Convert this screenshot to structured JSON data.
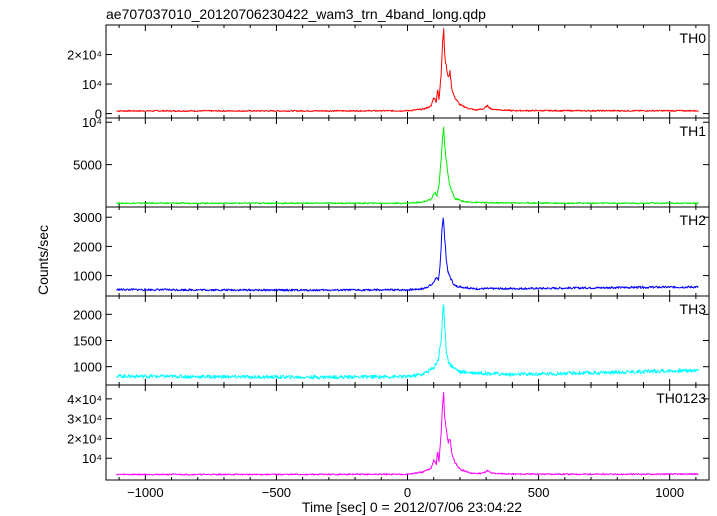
{
  "chart_data": {
    "type": "line",
    "title": "ae707037010_20120706230422_wam3_trn_4band_long.qdp",
    "xlabel": "Time [sec] 0 = 2012/07/06 23:04:22",
    "ylabel": "Counts/sec",
    "xlim": [
      -1150,
      1150
    ],
    "x_ticks": [
      -1000,
      -500,
      0,
      500,
      1000
    ],
    "x_tick_labels": [
      "−1000",
      "−500",
      "0",
      "500",
      "1000"
    ],
    "panels": [
      {
        "name": "TH0",
        "color": "#ff0000",
        "ylim": [
          -1500,
          30000
        ],
        "ticks": [
          0,
          10000,
          20000
        ],
        "tick_labels": [
          "0",
          "10⁴",
          "2×10⁴"
        ],
        "values": [
          [
            -1110,
            900
          ],
          [
            -800,
            900
          ],
          [
            -400,
            900
          ],
          [
            0,
            950
          ],
          [
            60,
            1500
          ],
          [
            90,
            2500
          ],
          [
            100,
            5500
          ],
          [
            110,
            4000
          ],
          [
            115,
            9000
          ],
          [
            120,
            4500
          ],
          [
            128,
            13000
          ],
          [
            134,
            25000
          ],
          [
            138,
            29000
          ],
          [
            142,
            20000
          ],
          [
            148,
            16000
          ],
          [
            155,
            12000
          ],
          [
            162,
            14000
          ],
          [
            170,
            8000
          ],
          [
            180,
            5500
          ],
          [
            200,
            3000
          ],
          [
            230,
            1800
          ],
          [
            260,
            1200
          ],
          [
            290,
            1600
          ],
          [
            305,
            2700
          ],
          [
            320,
            1500
          ],
          [
            400,
            1000
          ],
          [
            800,
            950
          ],
          [
            1110,
            950
          ]
        ]
      },
      {
        "name": "TH1",
        "color": "#00ee00",
        "ylim": [
          0,
          10500
        ],
        "ticks": [
          5000,
          10000
        ],
        "tick_labels": [
          "5000",
          "10⁴"
        ],
        "values": [
          [
            -1110,
            450
          ],
          [
            -800,
            450
          ],
          [
            -400,
            450
          ],
          [
            0,
            450
          ],
          [
            60,
            600
          ],
          [
            90,
            900
          ],
          [
            105,
            1800
          ],
          [
            112,
            1300
          ],
          [
            120,
            2500
          ],
          [
            128,
            5500
          ],
          [
            134,
            8500
          ],
          [
            138,
            9400
          ],
          [
            142,
            7000
          ],
          [
            148,
            5500
          ],
          [
            155,
            3500
          ],
          [
            165,
            2200
          ],
          [
            180,
            1000
          ],
          [
            220,
            600
          ],
          [
            300,
            500
          ],
          [
            700,
            450
          ],
          [
            1110,
            450
          ]
        ]
      },
      {
        "name": "TH2",
        "color": "#0000ff",
        "ylim": [
          300,
          3350
        ],
        "ticks": [
          1000,
          2000,
          3000
        ],
        "tick_labels": [
          "1000",
          "2000",
          "3000"
        ],
        "values": [
          [
            -1110,
            520
          ],
          [
            -800,
            510
          ],
          [
            -400,
            500
          ],
          [
            0,
            510
          ],
          [
            60,
            550
          ],
          [
            95,
            700
          ],
          [
            110,
            950
          ],
          [
            118,
            800
          ],
          [
            125,
            1400
          ],
          [
            131,
            2600
          ],
          [
            136,
            3000
          ],
          [
            141,
            2400
          ],
          [
            147,
            1600
          ],
          [
            155,
            1100
          ],
          [
            165,
            900
          ],
          [
            180,
            650
          ],
          [
            250,
            550
          ],
          [
            500,
            560
          ],
          [
            800,
            590
          ],
          [
            1110,
            610
          ]
        ]
      },
      {
        "name": "TH3",
        "color": "#00ffff",
        "ylim": [
          650,
          2350
        ],
        "ticks": [
          1000,
          1500,
          2000
        ],
        "tick_labels": [
          "1000",
          "1500",
          "2000"
        ],
        "values": [
          [
            -1110,
            820
          ],
          [
            -800,
            810
          ],
          [
            -400,
            800
          ],
          [
            0,
            810
          ],
          [
            60,
            860
          ],
          [
            100,
            980
          ],
          [
            118,
            1150
          ],
          [
            128,
            1500
          ],
          [
            134,
            2000
          ],
          [
            137,
            2250
          ],
          [
            141,
            1800
          ],
          [
            148,
            1300
          ],
          [
            160,
            1050
          ],
          [
            200,
            900
          ],
          [
            400,
            850
          ],
          [
            700,
            880
          ],
          [
            900,
            910
          ],
          [
            1110,
            930
          ]
        ]
      },
      {
        "name": "TH0123",
        "color": "#ff00ff",
        "ylim": [
          -1000,
          47000
        ],
        "ticks": [
          10000,
          20000,
          30000,
          40000
        ],
        "tick_labels": [
          "10⁴",
          "2×10⁴",
          "3×10⁴",
          "4×10⁴"
        ],
        "values": [
          [
            -1110,
            1800
          ],
          [
            -800,
            1800
          ],
          [
            -400,
            1800
          ],
          [
            0,
            1900
          ],
          [
            60,
            3000
          ],
          [
            90,
            5000
          ],
          [
            100,
            9000
          ],
          [
            110,
            7000
          ],
          [
            115,
            14000
          ],
          [
            120,
            8000
          ],
          [
            128,
            22000
          ],
          [
            134,
            38000
          ],
          [
            138,
            42000
          ],
          [
            142,
            30000
          ],
          [
            148,
            24000
          ],
          [
            155,
            18000
          ],
          [
            162,
            20000
          ],
          [
            170,
            12000
          ],
          [
            180,
            8000
          ],
          [
            200,
            4500
          ],
          [
            230,
            2800
          ],
          [
            260,
            2200
          ],
          [
            290,
            2600
          ],
          [
            305,
            3800
          ],
          [
            320,
            2400
          ],
          [
            400,
            2000
          ],
          [
            800,
            1900
          ],
          [
            1110,
            2000
          ]
        ]
      }
    ]
  }
}
